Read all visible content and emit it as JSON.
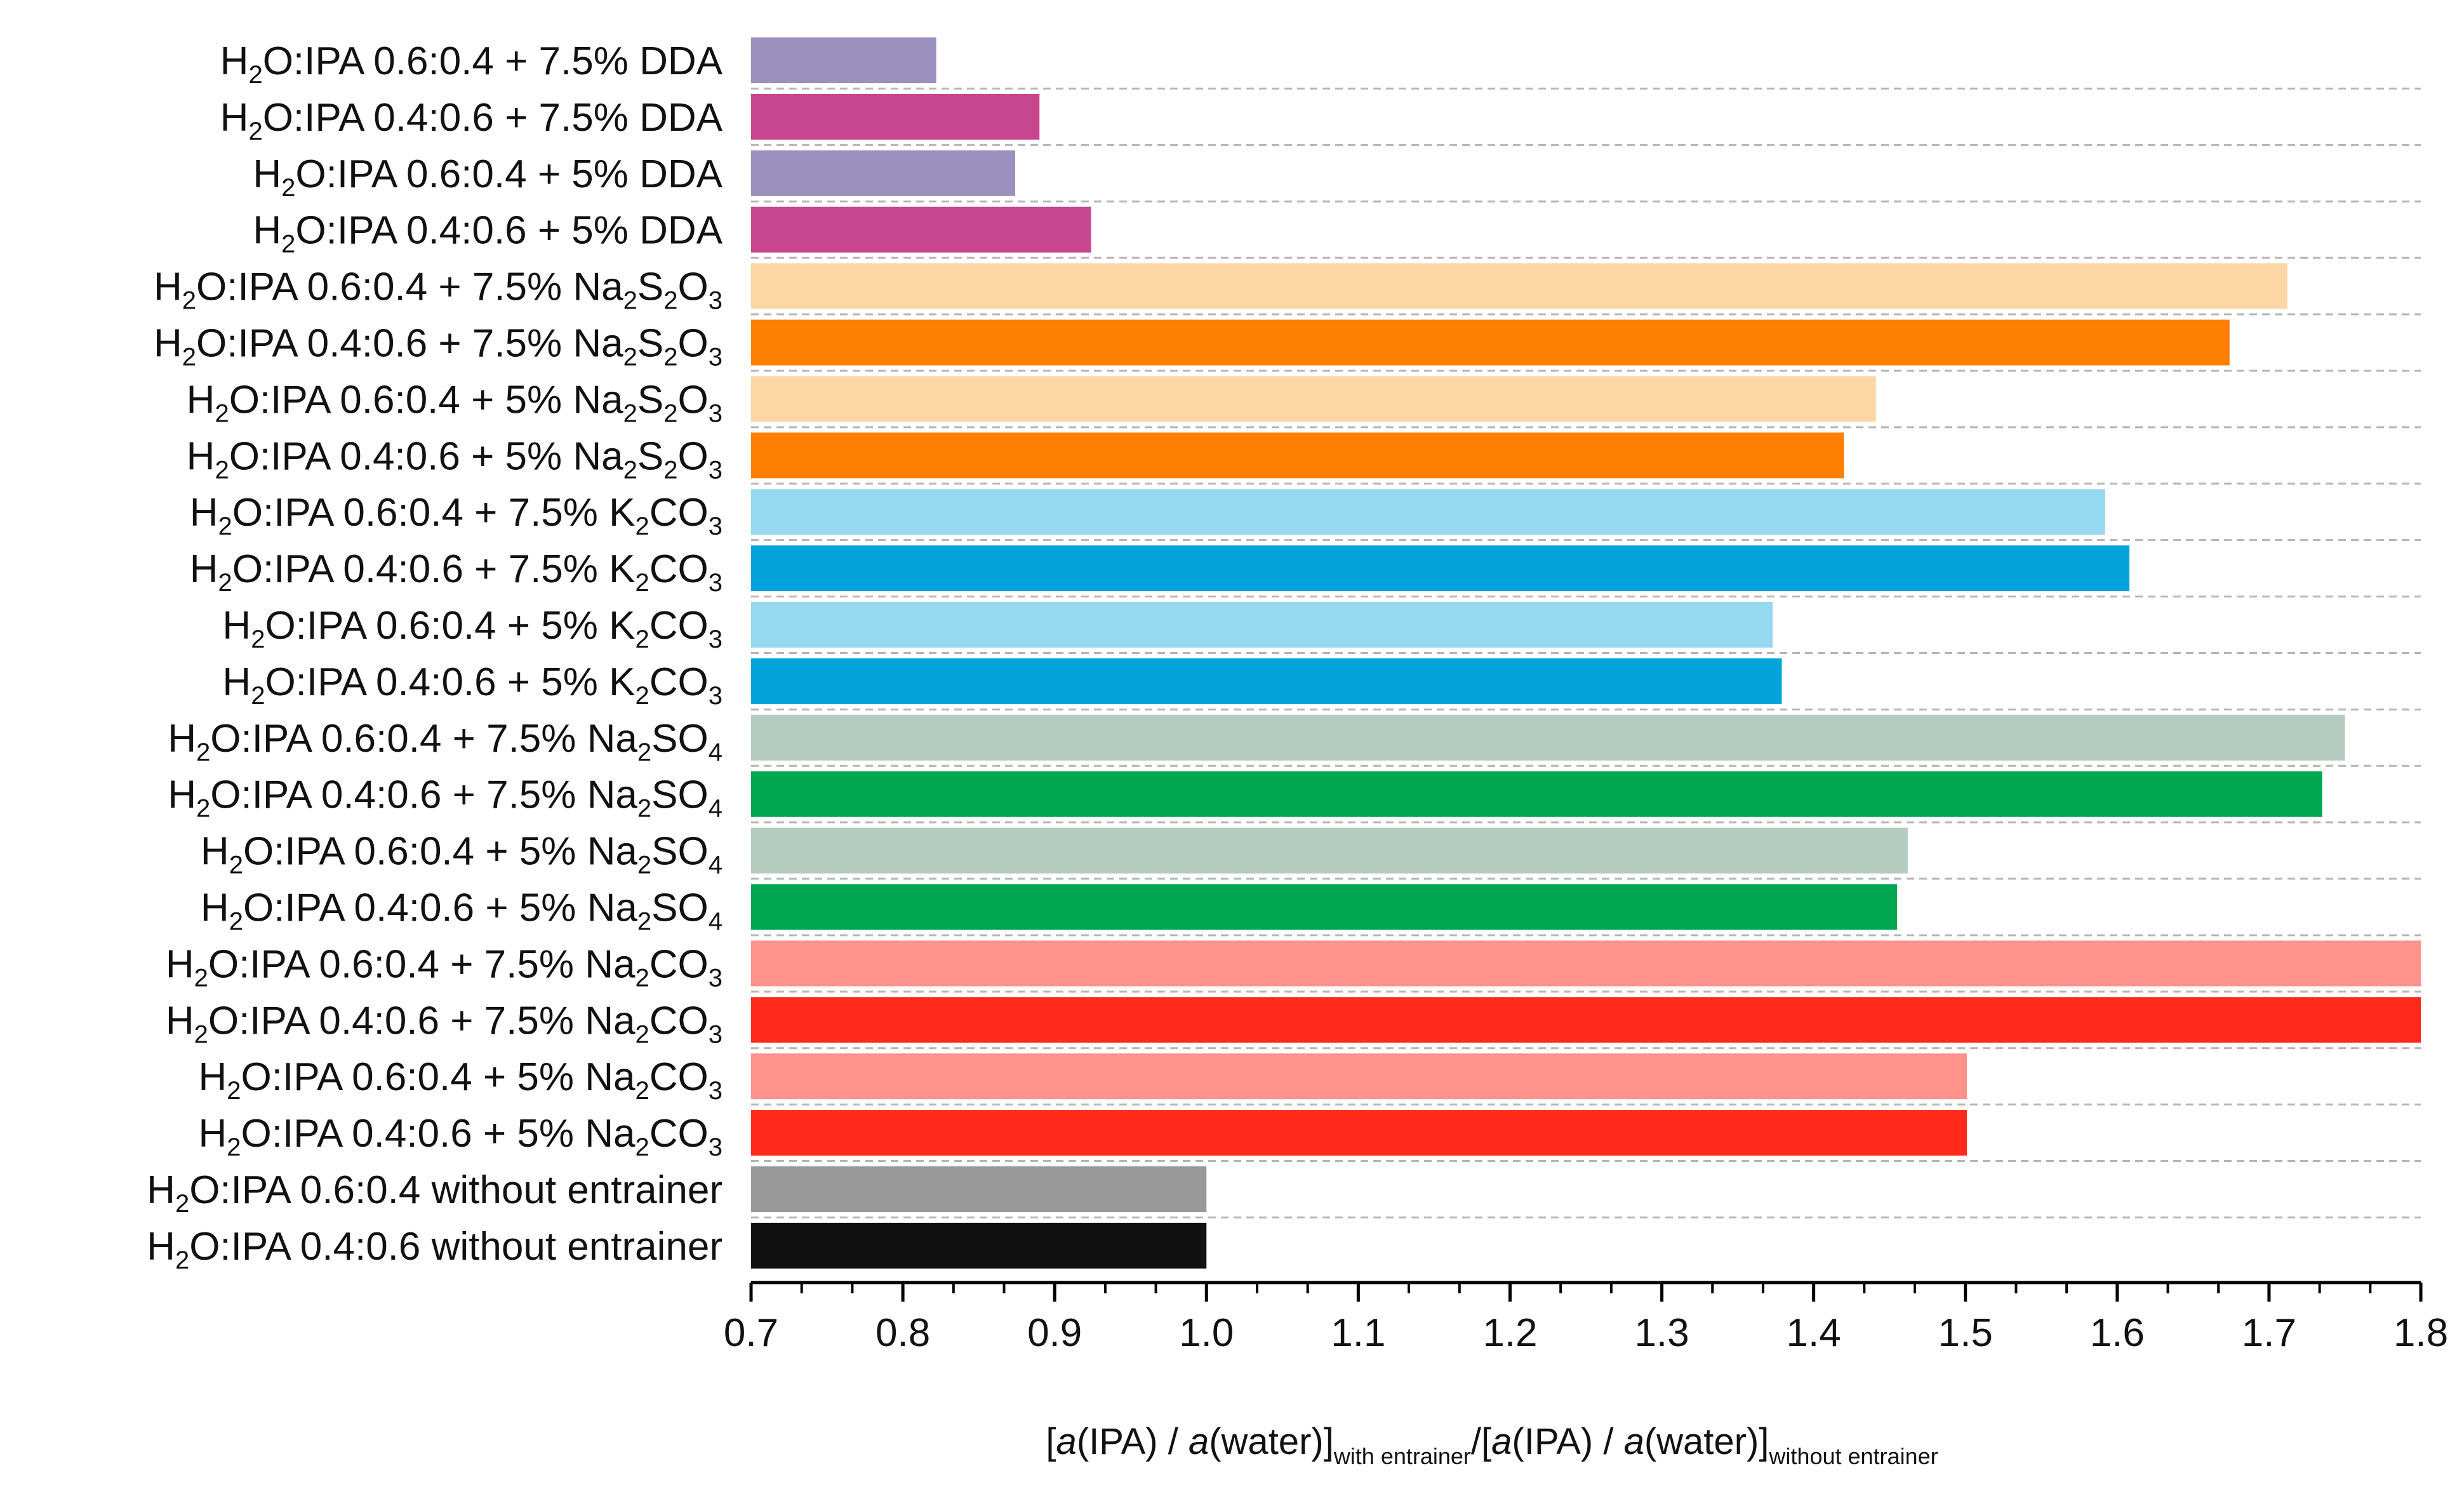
{
  "chart_data": {
    "type": "bar",
    "orientation": "horizontal",
    "categories": [
      [
        {
          "t": "H"
        },
        {
          "t": "2",
          "s": 1
        },
        {
          "t": "O:IPA 0.6:0.4 + 7.5% DDA"
        }
      ],
      [
        {
          "t": "H"
        },
        {
          "t": "2",
          "s": 1
        },
        {
          "t": "O:IPA 0.4:0.6 + 7.5% DDA"
        }
      ],
      [
        {
          "t": "H"
        },
        {
          "t": "2",
          "s": 1
        },
        {
          "t": "O:IPA 0.6:0.4 + 5% DDA"
        }
      ],
      [
        {
          "t": "H"
        },
        {
          "t": "2",
          "s": 1
        },
        {
          "t": "O:IPA 0.4:0.6 + 5% DDA"
        }
      ],
      [
        {
          "t": "H"
        },
        {
          "t": "2",
          "s": 1
        },
        {
          "t": "O:IPA 0.6:0.4 + 7.5% Na"
        },
        {
          "t": "2",
          "s": 1
        },
        {
          "t": "S"
        },
        {
          "t": "2",
          "s": 1
        },
        {
          "t": "O"
        },
        {
          "t": "3",
          "s": 1
        }
      ],
      [
        {
          "t": "H"
        },
        {
          "t": "2",
          "s": 1
        },
        {
          "t": "O:IPA 0.4:0.6 + 7.5% Na"
        },
        {
          "t": "2",
          "s": 1
        },
        {
          "t": "S"
        },
        {
          "t": "2",
          "s": 1
        },
        {
          "t": "O"
        },
        {
          "t": "3",
          "s": 1
        }
      ],
      [
        {
          "t": "H"
        },
        {
          "t": "2",
          "s": 1
        },
        {
          "t": "O:IPA 0.6:0.4 + 5% Na"
        },
        {
          "t": "2",
          "s": 1
        },
        {
          "t": "S"
        },
        {
          "t": "2",
          "s": 1
        },
        {
          "t": "O"
        },
        {
          "t": "3",
          "s": 1
        }
      ],
      [
        {
          "t": "H"
        },
        {
          "t": "2",
          "s": 1
        },
        {
          "t": "O:IPA 0.4:0.6 + 5% Na"
        },
        {
          "t": "2",
          "s": 1
        },
        {
          "t": "S"
        },
        {
          "t": "2",
          "s": 1
        },
        {
          "t": "O"
        },
        {
          "t": "3",
          "s": 1
        }
      ],
      [
        {
          "t": "H"
        },
        {
          "t": "2",
          "s": 1
        },
        {
          "t": "O:IPA 0.6:0.4 + 7.5% K"
        },
        {
          "t": "2",
          "s": 1
        },
        {
          "t": "CO"
        },
        {
          "t": "3",
          "s": 1
        }
      ],
      [
        {
          "t": "H"
        },
        {
          "t": "2",
          "s": 1
        },
        {
          "t": "O:IPA 0.4:0.6 + 7.5% K"
        },
        {
          "t": "2",
          "s": 1
        },
        {
          "t": "CO"
        },
        {
          "t": "3",
          "s": 1
        }
      ],
      [
        {
          "t": "H"
        },
        {
          "t": "2",
          "s": 1
        },
        {
          "t": "O:IPA 0.6:0.4 + 5% K"
        },
        {
          "t": "2",
          "s": 1
        },
        {
          "t": "CO"
        },
        {
          "t": "3",
          "s": 1
        }
      ],
      [
        {
          "t": "H"
        },
        {
          "t": "2",
          "s": 1
        },
        {
          "t": "O:IPA 0.4:0.6 + 5% K"
        },
        {
          "t": "2",
          "s": 1
        },
        {
          "t": "CO"
        },
        {
          "t": "3",
          "s": 1
        }
      ],
      [
        {
          "t": "H"
        },
        {
          "t": "2",
          "s": 1
        },
        {
          "t": "O:IPA 0.6:0.4 + 7.5% Na"
        },
        {
          "t": "2",
          "s": 1
        },
        {
          "t": "SO"
        },
        {
          "t": "4",
          "s": 1
        }
      ],
      [
        {
          "t": "H"
        },
        {
          "t": "2",
          "s": 1
        },
        {
          "t": "O:IPA 0.4:0.6 + 7.5% Na"
        },
        {
          "t": "2",
          "s": 1
        },
        {
          "t": "SO"
        },
        {
          "t": "4",
          "s": 1
        }
      ],
      [
        {
          "t": "H"
        },
        {
          "t": "2",
          "s": 1
        },
        {
          "t": "O:IPA 0.6:0.4 + 5% Na"
        },
        {
          "t": "2",
          "s": 1
        },
        {
          "t": "SO"
        },
        {
          "t": "4",
          "s": 1
        }
      ],
      [
        {
          "t": "H"
        },
        {
          "t": "2",
          "s": 1
        },
        {
          "t": "O:IPA 0.4:0.6 + 5% Na"
        },
        {
          "t": "2",
          "s": 1
        },
        {
          "t": "SO"
        },
        {
          "t": "4",
          "s": 1
        }
      ],
      [
        {
          "t": "H"
        },
        {
          "t": "2",
          "s": 1
        },
        {
          "t": "O:IPA 0.6:0.4 + 7.5% Na"
        },
        {
          "t": "2",
          "s": 1
        },
        {
          "t": "CO"
        },
        {
          "t": "3",
          "s": 1
        }
      ],
      [
        {
          "t": "H"
        },
        {
          "t": "2",
          "s": 1
        },
        {
          "t": "O:IPA 0.4:0.6 + 7.5% Na"
        },
        {
          "t": "2",
          "s": 1
        },
        {
          "t": "CO"
        },
        {
          "t": "3",
          "s": 1
        }
      ],
      [
        {
          "t": "H"
        },
        {
          "t": "2",
          "s": 1
        },
        {
          "t": "O:IPA 0.6:0.4 + 5% Na"
        },
        {
          "t": "2",
          "s": 1
        },
        {
          "t": "CO"
        },
        {
          "t": "3",
          "s": 1
        }
      ],
      [
        {
          "t": "H"
        },
        {
          "t": "2",
          "s": 1
        },
        {
          "t": "O:IPA 0.4:0.6 + 5% Na"
        },
        {
          "t": "2",
          "s": 1
        },
        {
          "t": "CO"
        },
        {
          "t": "3",
          "s": 1
        }
      ],
      [
        {
          "t": "H"
        },
        {
          "t": "2",
          "s": 1
        },
        {
          "t": "O:IPA 0.6:0.4 without entrainer"
        }
      ],
      [
        {
          "t": "H"
        },
        {
          "t": "2",
          "s": 1
        },
        {
          "t": "O:IPA 0.4:0.6 without entrainer"
        }
      ]
    ],
    "values": [
      0.822,
      0.89,
      0.874,
      0.924,
      1.712,
      1.674,
      1.441,
      1.42,
      1.592,
      1.608,
      1.373,
      1.379,
      1.75,
      1.735,
      1.462,
      1.455,
      1.8,
      1.8,
      1.501,
      1.501,
      1.0,
      1.0
    ],
    "colors": [
      "#9b8fbe",
      "#c8468f",
      "#9b8fbe",
      "#c8468f",
      "#fdd6a6",
      "#ff7f00",
      "#fdd6a6",
      "#ff7f00",
      "#97d8f1",
      "#00a3da",
      "#97d8f1",
      "#00a3da",
      "#b4ccbf",
      "#00a650",
      "#b4ccbf",
      "#00a650",
      "#ff938c",
      "#ff2a1a",
      "#ff938c",
      "#ff2a1a",
      "#999999",
      "#111111"
    ],
    "xlim": [
      0.7,
      1.8
    ],
    "xticks": [
      "0.7",
      "0.8",
      "0.9",
      "1.0",
      "1.1",
      "1.2",
      "1.3",
      "1.4",
      "1.5",
      "1.6",
      "1.7",
      "1.8"
    ],
    "minor_ticks_per_interval": 2,
    "grid": "dashed horizontal separators between categories",
    "xlabel": [
      {
        "t": "["
      },
      {
        "t": "a",
        "i": 1
      },
      {
        "t": "(IPA) / "
      },
      {
        "t": "a",
        "i": 1
      },
      {
        "t": "(water)]"
      },
      {
        "t": "with entrainer",
        "s": 1
      },
      {
        "t": "/["
      },
      {
        "t": "a",
        "i": 1
      },
      {
        "t": "(IPA) / "
      },
      {
        "t": "a",
        "i": 1
      },
      {
        "t": "(water)]"
      },
      {
        "t": "without entrainer",
        "s": 1
      }
    ],
    "ylabel": "",
    "title": ""
  }
}
